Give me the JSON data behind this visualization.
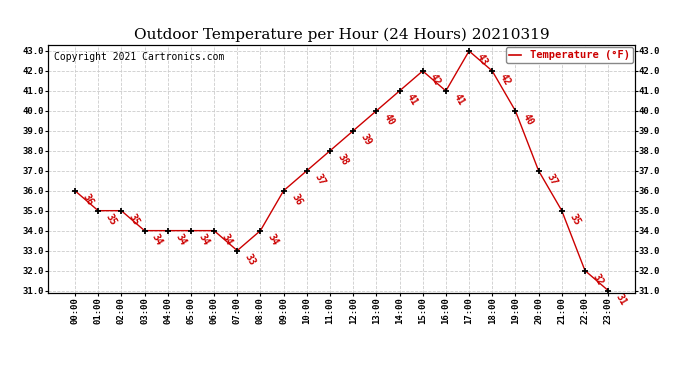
{
  "title": "Outdoor Temperature per Hour (24 Hours) 20210319",
  "copyright": "Copyright 2021 Cartronics.com",
  "legend_label": "Temperature (°F)",
  "hours": [
    "00:00",
    "01:00",
    "02:00",
    "03:00",
    "04:00",
    "05:00",
    "06:00",
    "07:00",
    "08:00",
    "09:00",
    "10:00",
    "11:00",
    "12:00",
    "13:00",
    "14:00",
    "15:00",
    "16:00",
    "17:00",
    "18:00",
    "19:00",
    "20:00",
    "21:00",
    "22:00",
    "23:00"
  ],
  "temps": [
    36,
    35,
    35,
    34,
    34,
    34,
    34,
    33,
    34,
    36,
    37,
    38,
    39,
    40,
    41,
    42,
    41,
    43,
    42,
    40,
    37,
    35,
    32,
    31
  ],
  "line_color": "#cc0000",
  "marker_color": "#000000",
  "label_color": "#cc0000",
  "grid_color": "#cccccc",
  "bg_color": "#ffffff",
  "ylim_min": 31.0,
  "ylim_max": 43.0,
  "ytick_step": 1.0,
  "title_fontsize": 11,
  "label_fontsize": 6.5,
  "annot_fontsize": 7,
  "copyright_fontsize": 7,
  "legend_fontsize": 7.5
}
